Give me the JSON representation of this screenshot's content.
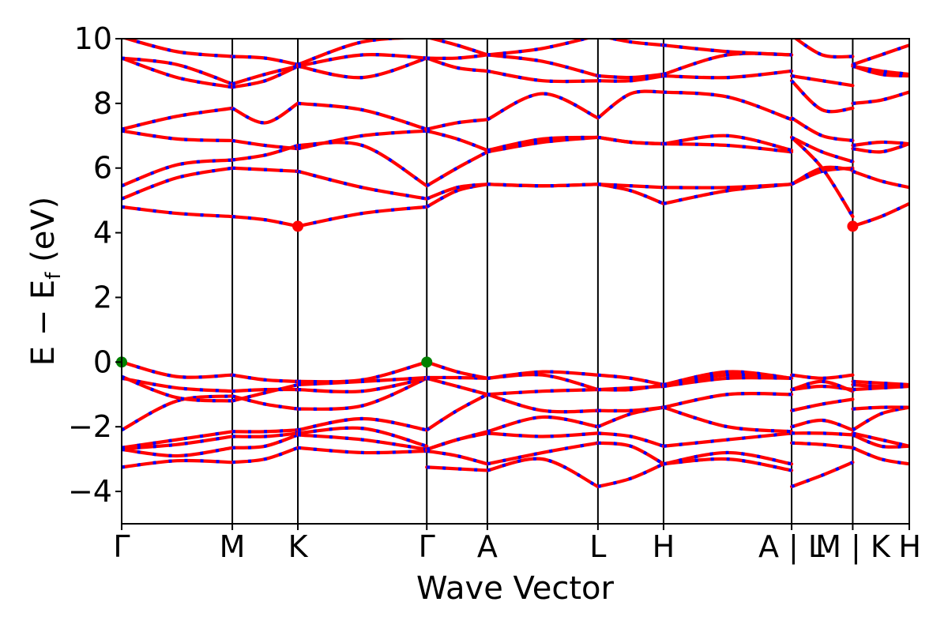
{
  "chart_data": {
    "type": "line",
    "title": "",
    "xlabel": "Wave Vector",
    "ylabel": "E − E",
    "ylabel_sub": "f",
    "ylabel_unit": " (eV)",
    "ylim": [
      -5,
      10
    ],
    "yticks": [
      -4,
      -2,
      0,
      2,
      4,
      6,
      8,
      10
    ],
    "ytick_labels": [
      "−4",
      "−2",
      "0",
      "2",
      "4",
      "6",
      "8",
      "10"
    ],
    "kpoint_positions": [
      0,
      0.1405,
      0.2237,
      0.3874,
      0.4643,
      0.6047,
      0.688,
      0.8506,
      0.9282,
      1.0
    ],
    "kpoint_labels": [
      "Γ",
      "M",
      "K",
      "Γ",
      "A",
      "L",
      "H",
      "A | L",
      "M | K",
      "H"
    ],
    "series_colors": {
      "spin_up": "#ff0000",
      "spin_down": "#0000ff"
    },
    "markers": [
      {
        "x": 0.0,
        "y": 0.0,
        "color": "#008000",
        "kind": "VBM"
      },
      {
        "x": 0.3874,
        "y": 0.0,
        "color": "#008000",
        "kind": "VBM"
      },
      {
        "x": 0.2237,
        "y": 4.2,
        "color": "#ff0000",
        "kind": "CBM"
      },
      {
        "x": 0.9282,
        "y": 4.2,
        "color": "#ff0000",
        "kind": "CBM"
      }
    ],
    "segments": [
      {
        "from": "Γ",
        "to": "M",
        "bands": [
          [
            -3.25,
            -3.05,
            -3.1
          ],
          [
            -2.7,
            -2.9,
            -2.65
          ],
          [
            -2.68,
            -2.55,
            -2.3
          ],
          [
            -2.65,
            -2.4,
            -2.15
          ],
          [
            -2.1,
            -1.2,
            -1.05
          ],
          [
            -0.5,
            -0.8,
            -0.9
          ],
          [
            -0.45,
            -1.1,
            -1.2
          ],
          [
            0.0,
            -0.45,
            -0.4
          ],
          [
            4.8,
            4.6,
            4.5
          ],
          [
            5.05,
            5.7,
            6.0
          ],
          [
            5.45,
            6.1,
            6.25
          ],
          [
            7.15,
            6.9,
            6.85
          ],
          [
            7.2,
            7.6,
            7.85
          ],
          [
            9.4,
            8.8,
            8.5
          ],
          [
            9.4,
            9.2,
            8.6
          ],
          [
            10.05,
            9.6,
            9.45
          ]
        ]
      },
      {
        "from": "M",
        "to": "K",
        "bands": [
          [
            -3.1,
            -3.0,
            -2.65
          ],
          [
            -2.65,
            -2.6,
            -2.25
          ],
          [
            -2.3,
            -2.3,
            -2.2
          ],
          [
            -2.15,
            -2.15,
            -2.1
          ],
          [
            -1.05,
            -1.3,
            -1.45
          ],
          [
            -0.9,
            -0.85,
            -0.85
          ],
          [
            -1.2,
            -0.95,
            -0.7
          ],
          [
            -0.4,
            -0.55,
            -0.6
          ],
          [
            4.5,
            4.4,
            4.2
          ],
          [
            6.0,
            5.95,
            5.9
          ],
          [
            6.25,
            6.4,
            6.7
          ],
          [
            6.85,
            6.7,
            6.6
          ],
          [
            7.85,
            7.4,
            8.0
          ],
          [
            8.5,
            8.7,
            9.15
          ],
          [
            8.6,
            8.9,
            9.15
          ],
          [
            9.45,
            9.4,
            9.2
          ]
        ]
      },
      {
        "from": "K",
        "to": "Γ",
        "bands": [
          [
            -2.65,
            -2.8,
            -2.75
          ],
          [
            -2.25,
            -2.4,
            -2.7
          ],
          [
            -2.2,
            -2.05,
            -2.6
          ],
          [
            -2.1,
            -1.75,
            -2.1
          ],
          [
            -1.45,
            -1.35,
            -0.5
          ],
          [
            -0.85,
            -0.9,
            -0.5
          ],
          [
            -0.7,
            -0.6,
            -0.48
          ],
          [
            -0.6,
            -0.55,
            0.0
          ],
          [
            4.2,
            4.6,
            4.8
          ],
          [
            5.9,
            5.4,
            5.05
          ],
          [
            6.7,
            6.7,
            5.45
          ],
          [
            6.6,
            7.0,
            7.15
          ],
          [
            8.0,
            7.8,
            7.2
          ],
          [
            9.15,
            8.8,
            9.4
          ],
          [
            9.15,
            9.5,
            9.4
          ],
          [
            9.2,
            9.9,
            10.05
          ]
        ]
      },
      {
        "from": "Γ",
        "to": "A",
        "bands": [
          [
            -3.25,
            -3.3,
            -3.35
          ],
          [
            -2.75,
            -2.9,
            -3.15
          ],
          [
            -2.7,
            -2.4,
            -2.2
          ],
          [
            -2.7,
            -2.4,
            -2.15
          ],
          [
            -2.1,
            -1.5,
            -1.0
          ],
          [
            -0.5,
            -0.75,
            -1.0
          ],
          [
            -0.48,
            -0.48,
            -0.5
          ],
          [
            0.0,
            -0.3,
            -0.5
          ],
          [
            4.8,
            5.3,
            5.5
          ],
          [
            5.05,
            5.4,
            5.5
          ],
          [
            5.45,
            6.0,
            6.5
          ],
          [
            7.15,
            6.9,
            6.55
          ],
          [
            7.2,
            7.4,
            7.5
          ],
          [
            9.4,
            9.1,
            9.0
          ],
          [
            9.4,
            9.4,
            9.5
          ],
          [
            10.05,
            9.8,
            9.5
          ]
        ]
      },
      {
        "from": "A",
        "to": "L",
        "bands": [
          [
            -3.35,
            -3.0,
            -3.85
          ],
          [
            -3.15,
            -2.8,
            -2.5
          ],
          [
            -2.2,
            -2.3,
            -2.2
          ],
          [
            -2.15,
            -1.7,
            -2.0
          ],
          [
            -1.0,
            -1.5,
            -1.5
          ],
          [
            -1.0,
            -0.9,
            -0.85
          ],
          [
            -0.5,
            -0.4,
            -0.85
          ],
          [
            -0.5,
            -0.3,
            -0.4
          ],
          [
            5.5,
            5.45,
            5.5
          ],
          [
            5.5,
            5.45,
            5.5
          ],
          [
            6.5,
            6.8,
            6.95
          ],
          [
            6.55,
            6.9,
            6.95
          ],
          [
            7.5,
            8.3,
            7.55
          ],
          [
            9.0,
            8.7,
            8.7
          ],
          [
            9.5,
            9.3,
            8.85
          ],
          [
            9.5,
            9.7,
            10.1
          ]
        ]
      },
      {
        "from": "L",
        "to": "H",
        "bands": [
          [
            -3.85,
            -3.6,
            -3.15
          ],
          [
            -2.5,
            -2.6,
            -3.15
          ],
          [
            -2.2,
            -2.3,
            -2.6
          ],
          [
            -2.0,
            -1.6,
            -1.4
          ],
          [
            -1.5,
            -1.5,
            -1.4
          ],
          [
            -0.85,
            -0.8,
            -0.75
          ],
          [
            -0.85,
            -0.85,
            -0.7
          ],
          [
            -0.4,
            -0.5,
            -0.7
          ],
          [
            5.5,
            5.3,
            4.9
          ],
          [
            5.5,
            5.45,
            5.4
          ],
          [
            6.95,
            6.8,
            6.75
          ],
          [
            6.95,
            6.8,
            6.75
          ],
          [
            7.55,
            8.3,
            8.35
          ],
          [
            8.7,
            8.7,
            8.85
          ],
          [
            8.85,
            8.8,
            8.9
          ],
          [
            10.1,
            9.9,
            9.8
          ]
        ]
      },
      {
        "from": "H",
        "to": "A",
        "bands": [
          [
            -3.15,
            -3.0,
            -3.35
          ],
          [
            -3.15,
            -2.8,
            -3.15
          ],
          [
            -2.6,
            -2.4,
            -2.2
          ],
          [
            -1.4,
            -2.0,
            -2.15
          ],
          [
            -1.4,
            -1.0,
            -1.0
          ],
          [
            -0.75,
            -0.5,
            -0.5
          ],
          [
            -0.7,
            -0.3,
            -0.5
          ],
          [
            -0.7,
            -0.4,
            -0.5
          ],
          [
            4.9,
            5.3,
            5.5
          ],
          [
            5.4,
            5.4,
            5.5
          ],
          [
            6.75,
            6.7,
            6.5
          ],
          [
            6.75,
            7.0,
            6.55
          ],
          [
            8.35,
            8.2,
            7.5
          ],
          [
            8.85,
            8.8,
            9.0
          ],
          [
            8.9,
            9.5,
            9.5
          ],
          [
            9.8,
            9.6,
            9.5
          ]
        ]
      },
      {
        "from": "L",
        "to": "M",
        "bands": [
          [
            -3.85,
            -3.5,
            -3.1
          ],
          [
            -2.5,
            -2.55,
            -2.65
          ],
          [
            -2.2,
            -2.2,
            -2.25
          ],
          [
            -2.0,
            -1.8,
            -2.1
          ],
          [
            -1.5,
            -1.3,
            -1.15
          ],
          [
            -0.85,
            -0.75,
            -0.85
          ],
          [
            -0.85,
            -0.6,
            -0.9
          ],
          [
            -0.4,
            -0.5,
            -0.4
          ],
          [
            5.5,
            5.9,
            6.0
          ],
          [
            5.5,
            6.0,
            5.95
          ],
          [
            6.95,
            6.0,
            4.5
          ],
          [
            6.95,
            6.5,
            6.2
          ],
          [
            7.55,
            7.0,
            6.85
          ],
          [
            8.7,
            7.8,
            7.85
          ],
          [
            8.85,
            8.7,
            8.55
          ],
          [
            10.1,
            9.5,
            9.45
          ]
        ]
      },
      {
        "from": "K",
        "to": "H",
        "bands": [
          [
            -2.65,
            -3.0,
            -3.15
          ],
          [
            -2.25,
            -2.6,
            -2.6
          ],
          [
            -2.2,
            -2.4,
            -2.6
          ],
          [
            -2.1,
            -1.6,
            -1.4
          ],
          [
            -1.45,
            -1.4,
            -1.4
          ],
          [
            -0.85,
            -0.8,
            -0.75
          ],
          [
            -0.7,
            -0.75,
            -0.7
          ],
          [
            -0.6,
            -0.65,
            -0.7
          ],
          [
            4.2,
            4.5,
            4.9
          ],
          [
            5.9,
            5.6,
            5.4
          ],
          [
            6.7,
            6.8,
            6.75
          ],
          [
            6.6,
            6.5,
            6.75
          ],
          [
            8.0,
            8.1,
            8.35
          ],
          [
            9.15,
            8.9,
            8.85
          ],
          [
            9.15,
            9.0,
            8.9
          ],
          [
            9.2,
            9.5,
            9.8
          ]
        ]
      }
    ]
  }
}
